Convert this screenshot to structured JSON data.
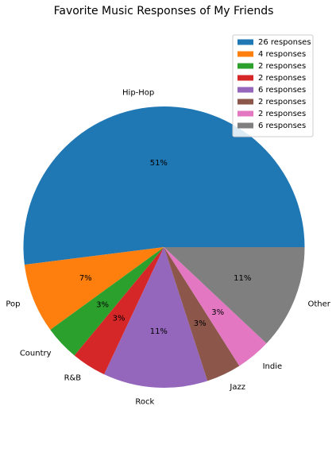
{
  "chart_data": {
    "type": "pie",
    "title": "Favorite Music Responses of My Friends",
    "legend_position": "top-right",
    "slices": [
      {
        "label": "Hip-Hop",
        "value": 26,
        "pct_label": "51%",
        "legend": "26 responses",
        "color": "#1f77b4"
      },
      {
        "label": "Pop",
        "value": 4,
        "pct_label": "7%",
        "legend": "4 responses",
        "color": "#ff7f0e"
      },
      {
        "label": "Country",
        "value": 2,
        "pct_label": "3%",
        "legend": "2 responses",
        "color": "#2ca02c"
      },
      {
        "label": "R&B",
        "value": 2,
        "pct_label": "3%",
        "legend": "2 responses",
        "color": "#d62728"
      },
      {
        "label": "Rock",
        "value": 6,
        "pct_label": "11%",
        "legend": "6 responses",
        "color": "#9467bd"
      },
      {
        "label": "Jazz",
        "value": 2,
        "pct_label": "3%",
        "legend": "2 responses",
        "color": "#8c564b"
      },
      {
        "label": "Indie",
        "value": 2,
        "pct_label": "3%",
        "legend": "2 responses",
        "color": "#e377c2"
      },
      {
        "label": "Other",
        "value": 6,
        "pct_label": "11%",
        "legend": "6 responses",
        "color": "#7f7f7f"
      }
    ]
  }
}
